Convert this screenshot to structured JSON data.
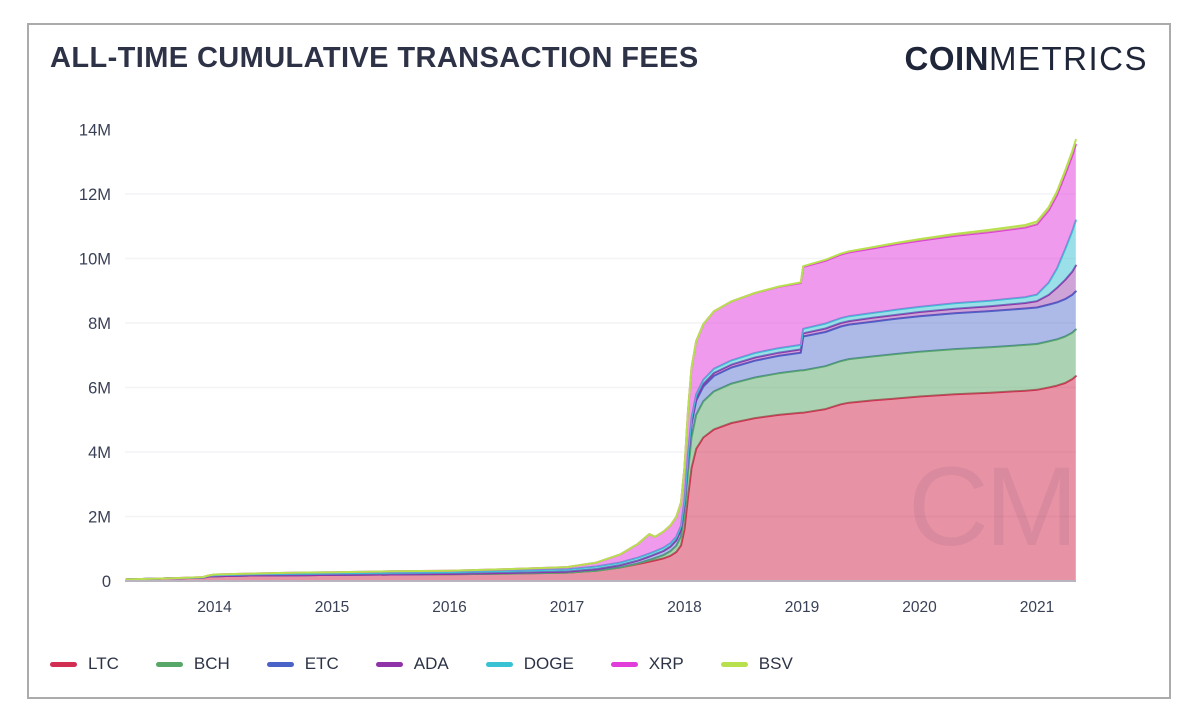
{
  "header": {
    "title": "ALL-TIME CUMULATIVE TRANSACTION FEES",
    "brand_bold": "COIN",
    "brand_light": "METRICS"
  },
  "watermark": "CM",
  "colors": {
    "title_text": "#2d3247",
    "axis_text": "#3a4156",
    "gridline": "#f4f3f6",
    "baseline": "#b9b5c0",
    "card_border": "#ababab"
  },
  "chart_data": {
    "type": "area",
    "stacked": true,
    "title": "ALL-TIME CUMULATIVE TRANSACTION FEES",
    "xlabel": "",
    "ylabel": "",
    "values_unit": "millions",
    "ylim": [
      0,
      14
    ],
    "x_range": [
      2013.25,
      2021.33
    ],
    "grid": "horizontal",
    "legend_position": "bottom",
    "x": [
      2013.25,
      2013.6,
      2013.9,
      2013.95,
      2014.0,
      2014.3,
      2014.7,
      2015.0,
      2015.5,
      2016.0,
      2016.5,
      2017.0,
      2017.25,
      2017.45,
      2017.6,
      2017.7,
      2017.75,
      2017.82,
      2017.88,
      2017.93,
      2017.97,
      2018.0,
      2018.03,
      2018.06,
      2018.1,
      2018.16,
      2018.25,
      2018.4,
      2018.6,
      2018.8,
      2018.99,
      2019.01,
      2019.2,
      2019.33,
      2019.4,
      2019.6,
      2019.8,
      2020.0,
      2020.3,
      2020.6,
      2020.9,
      2021.0,
      2021.1,
      2021.17,
      2021.24,
      2021.3,
      2021.33
    ],
    "series": [
      {
        "name": "LTC",
        "color": "#d22e52",
        "fill_opacity": 0.52,
        "values": [
          0.05,
          0.08,
          0.1,
          0.14,
          0.15,
          0.17,
          0.18,
          0.19,
          0.2,
          0.21,
          0.23,
          0.26,
          0.32,
          0.42,
          0.52,
          0.6,
          0.64,
          0.7,
          0.78,
          0.9,
          1.1,
          1.6,
          2.6,
          3.5,
          4.1,
          4.45,
          4.7,
          4.9,
          5.05,
          5.15,
          5.22,
          5.22,
          5.33,
          5.48,
          5.53,
          5.6,
          5.66,
          5.72,
          5.79,
          5.84,
          5.9,
          5.93,
          6.0,
          6.06,
          6.14,
          6.26,
          6.35
        ]
      },
      {
        "name": "BCH",
        "color": "#57a868",
        "fill_opacity": 0.5,
        "values": [
          0,
          0,
          0,
          0,
          0,
          0,
          0,
          0,
          0,
          0,
          0,
          0,
          0,
          0,
          0.02,
          0.05,
          0.07,
          0.1,
          0.14,
          0.19,
          0.28,
          0.5,
          0.78,
          0.95,
          1.05,
          1.12,
          1.18,
          1.22,
          1.26,
          1.29,
          1.31,
          1.31,
          1.33,
          1.34,
          1.35,
          1.36,
          1.38,
          1.39,
          1.4,
          1.41,
          1.42,
          1.42,
          1.43,
          1.43,
          1.44,
          1.44,
          1.45
        ]
      },
      {
        "name": "ETC",
        "color": "#4a63c8",
        "fill_opacity": 0.45,
        "values": [
          0,
          0,
          0,
          0,
          0,
          0,
          0,
          0,
          0,
          0.01,
          0.02,
          0.03,
          0.05,
          0.07,
          0.09,
          0.11,
          0.12,
          0.13,
          0.15,
          0.17,
          0.2,
          0.27,
          0.36,
          0.41,
          0.44,
          0.46,
          0.48,
          0.5,
          0.52,
          0.54,
          0.55,
          1.05,
          1.06,
          1.07,
          1.07,
          1.08,
          1.09,
          1.1,
          1.11,
          1.12,
          1.13,
          1.13,
          1.14,
          1.15,
          1.16,
          1.17,
          1.18
        ]
      },
      {
        "name": "ADA",
        "color": "#9032a8",
        "fill_opacity": 0.45,
        "values": [
          0,
          0,
          0,
          0,
          0,
          0,
          0,
          0,
          0,
          0,
          0,
          0,
          0,
          0,
          0,
          0,
          0,
          0,
          0,
          0.01,
          0.02,
          0.04,
          0.06,
          0.07,
          0.08,
          0.08,
          0.09,
          0.09,
          0.1,
          0.1,
          0.1,
          0.1,
          0.11,
          0.11,
          0.11,
          0.12,
          0.12,
          0.13,
          0.14,
          0.15,
          0.17,
          0.2,
          0.3,
          0.45,
          0.6,
          0.72,
          0.8
        ]
      },
      {
        "name": "DOGE",
        "color": "#38c2d4",
        "fill_opacity": 0.5,
        "values": [
          0,
          0,
          0.01,
          0.02,
          0.03,
          0.04,
          0.05,
          0.05,
          0.06,
          0.06,
          0.07,
          0.07,
          0.08,
          0.08,
          0.09,
          0.09,
          0.09,
          0.1,
          0.1,
          0.1,
          0.11,
          0.11,
          0.12,
          0.12,
          0.12,
          0.13,
          0.13,
          0.13,
          0.14,
          0.14,
          0.14,
          0.14,
          0.15,
          0.15,
          0.15,
          0.15,
          0.16,
          0.16,
          0.17,
          0.17,
          0.18,
          0.2,
          0.38,
          0.6,
          0.95,
          1.25,
          1.4
        ]
      },
      {
        "name": "XRP",
        "color": "#e03ddb",
        "fill_opacity": 0.52,
        "values": [
          0,
          0,
          0.01,
          0.01,
          0.02,
          0.02,
          0.03,
          0.03,
          0.04,
          0.04,
          0.05,
          0.07,
          0.12,
          0.25,
          0.42,
          0.6,
          0.45,
          0.5,
          0.55,
          0.62,
          0.72,
          1.0,
          1.35,
          1.55,
          1.65,
          1.72,
          1.78,
          1.83,
          1.86,
          1.9,
          1.92,
          1.92,
          1.95,
          1.97,
          1.98,
          2.0,
          2.03,
          2.05,
          2.09,
          2.13,
          2.16,
          2.18,
          2.24,
          2.28,
          2.32,
          2.34,
          2.35
        ]
      },
      {
        "name": "BSV",
        "color": "#b8e04e",
        "fill_opacity": 0.6,
        "values": [
          0,
          0,
          0,
          0,
          0,
          0,
          0,
          0,
          0,
          0,
          0,
          0,
          0,
          0,
          0,
          0,
          0,
          0,
          0,
          0,
          0,
          0,
          0,
          0,
          0,
          0,
          0,
          0,
          0,
          0.01,
          0.02,
          0.02,
          0.03,
          0.03,
          0.03,
          0.04,
          0.04,
          0.05,
          0.06,
          0.07,
          0.08,
          0.09,
          0.1,
          0.11,
          0.12,
          0.14,
          0.15
        ]
      }
    ],
    "y_ticks": [
      {
        "value": 14,
        "label": "14M"
      },
      {
        "value": 12,
        "label": "12M"
      },
      {
        "value": 10,
        "label": "10M"
      },
      {
        "value": 8,
        "label": "8M"
      },
      {
        "value": 6,
        "label": "6M"
      },
      {
        "value": 4,
        "label": "4M"
      },
      {
        "value": 2,
        "label": "2M"
      },
      {
        "value": 0,
        "label": "0"
      }
    ],
    "x_ticks": [
      {
        "value": 2014,
        "label": "2014"
      },
      {
        "value": 2015,
        "label": "2015"
      },
      {
        "value": 2016,
        "label": "2016"
      },
      {
        "value": 2017,
        "label": "2017"
      },
      {
        "value": 2018,
        "label": "2018"
      },
      {
        "value": 2019,
        "label": "2019"
      },
      {
        "value": 2020,
        "label": "2020"
      },
      {
        "value": 2021,
        "label": "2021"
      }
    ]
  }
}
